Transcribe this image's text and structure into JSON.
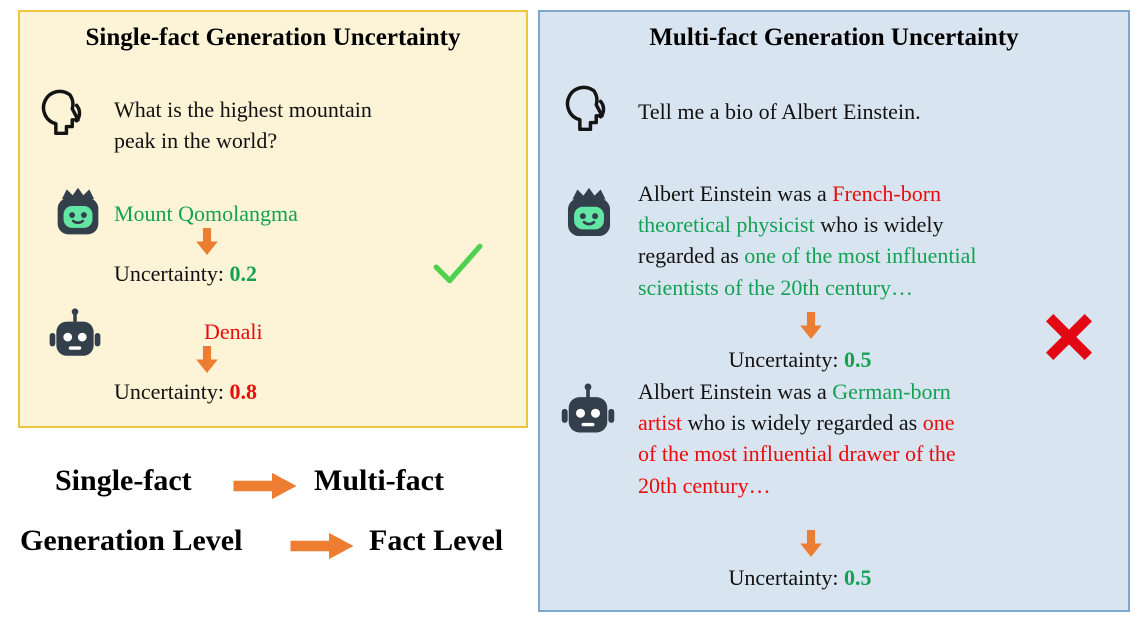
{
  "left_panel": {
    "title": "Single-fact Generation Uncertainty",
    "question": "What is the highest mountain\npeak in the world?",
    "answer_a": "Mount Qomolangma",
    "uncertainty_a_label": "Uncertainty: ",
    "uncertainty_a_value": "0.2",
    "answer_b": "Denali",
    "uncertainty_b_label": "Uncertainty: ",
    "uncertainty_b_value": "0.8"
  },
  "right_panel": {
    "title": "Multi-fact Generation Uncertainty",
    "question": "Tell me a bio of Albert Einstein.",
    "response_a_segments": [
      {
        "text": "Albert Einstein was a ",
        "color": "black"
      },
      {
        "text": "French-born",
        "color": "red"
      },
      {
        "text": "\ntheoretical physicist",
        "color": "green"
      },
      {
        "text": " who is widely\nregarded as ",
        "color": "black"
      },
      {
        "text": "one of the most influential\nscientists of the 20th century…",
        "color": "green"
      }
    ],
    "uncertainty_a_label": "Uncertainty: ",
    "uncertainty_a_value": "0.5",
    "response_b_segments": [
      {
        "text": "Albert Einstein was a ",
        "color": "black"
      },
      {
        "text": "German-born",
        "color": "green"
      },
      {
        "text": "\nartist",
        "color": "red"
      },
      {
        "text": " who is widely regarded as ",
        "color": "black"
      },
      {
        "text": "one\nof the most influential drawer of the\n20th century…",
        "color": "red"
      }
    ],
    "uncertainty_b_label": "Uncertainty: ",
    "uncertainty_b_value": "0.5"
  },
  "mapping": {
    "row1_left": "Single-fact",
    "row1_right": "Multi-fact",
    "row2_left": "Generation Level",
    "row2_right": "Fact Level"
  },
  "icons": {
    "user": "user-speaking-icon",
    "good_model": "crowned-robot-icon",
    "bad_model": "robot-icon",
    "correct_mark": "checkmark-icon",
    "incorrect_mark": "cross-icon",
    "down_flow": "down-arrow-icon",
    "right_flow": "right-arrow-icon"
  },
  "colors": {
    "green": "#13a153",
    "red": "#ea0b0b",
    "orange": "#ed7d31",
    "panel_left_bg": "#fdf4d7",
    "panel_left_border": "#efc53f",
    "panel_right_bg": "#d9e4f1",
    "panel_right_border": "#7ea7cb",
    "check_green": "#4fd14f",
    "cross_red": "#e30613"
  }
}
